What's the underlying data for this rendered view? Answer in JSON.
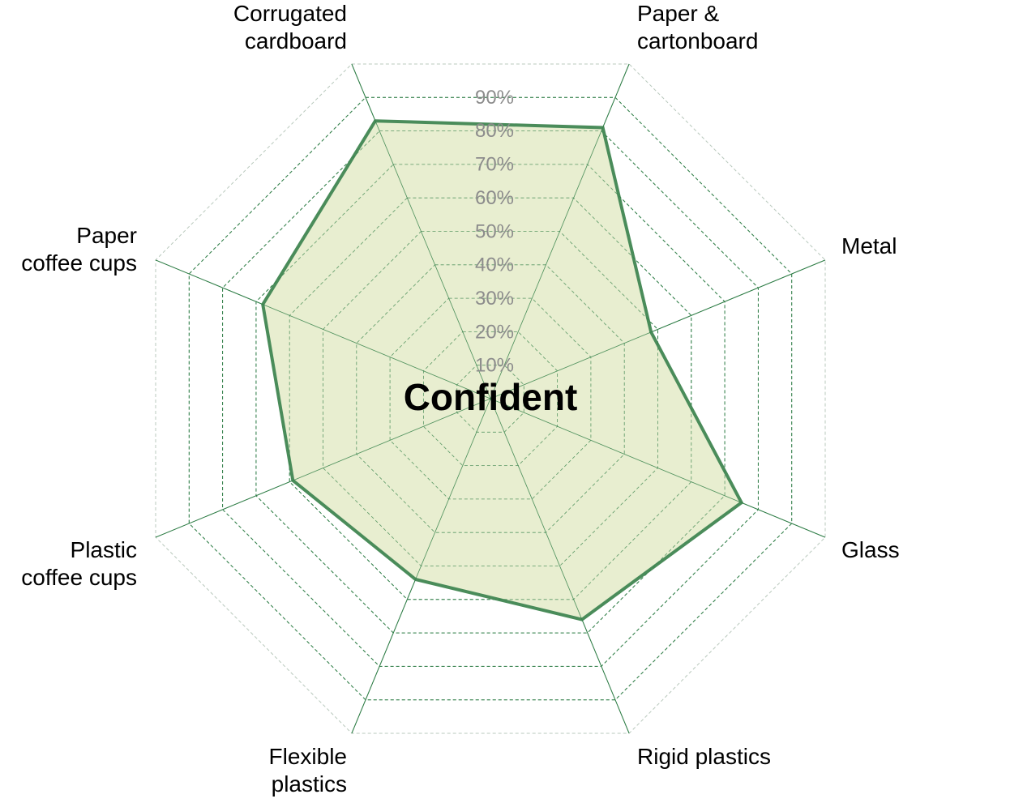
{
  "chart_data": {
    "type": "radar",
    "center_label": "Confident",
    "categories": [
      [
        "Corrugated",
        "cardboard"
      ],
      [
        "Paper &",
        "cartonboard"
      ],
      [
        "Metal"
      ],
      [
        "Glass"
      ],
      [
        "Rigid plastics"
      ],
      [
        "Flexible",
        "plastics"
      ],
      [
        "Plastic",
        "coffee cups"
      ],
      [
        "Paper",
        "coffee cups"
      ]
    ],
    "series": [
      {
        "values": [
          0.83,
          0.81,
          0.48,
          0.75,
          0.66,
          0.54,
          0.59,
          0.68
        ]
      }
    ],
    "r_ticks": [
      0.1,
      0.2,
      0.3,
      0.4,
      0.5,
      0.6,
      0.7,
      0.8,
      0.9
    ],
    "r_tick_labels": [
      "10%",
      "20%",
      "30%",
      "40%",
      "50%",
      "60%",
      "70%",
      "80%",
      "90%"
    ],
    "r_max": 1.0,
    "colors": {
      "line": "#4a8c5a",
      "fill": "#e5eccb",
      "grid": "#2e7d46",
      "tick_label": "#8c8c8c"
    }
  }
}
